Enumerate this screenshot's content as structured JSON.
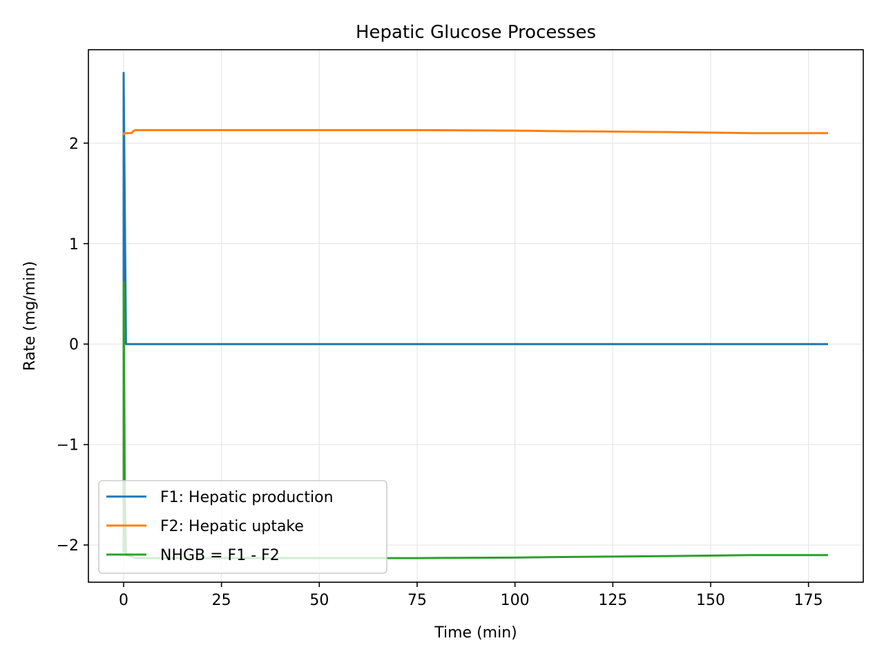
{
  "chart_data": {
    "type": "line",
    "title": "Hepatic Glucose Processes",
    "xlabel": "Time (min)",
    "ylabel": "Rate (mg/min)",
    "xlim": [
      -9,
      189
    ],
    "ylim": [
      -2.37,
      2.93
    ],
    "x_ticks": [
      0,
      25,
      50,
      75,
      100,
      125,
      150,
      175
    ],
    "x_tick_labels": [
      "0",
      "25",
      "50",
      "75",
      "100",
      "125",
      "150",
      "175"
    ],
    "y_ticks": [
      -2,
      -1,
      0,
      1,
      2
    ],
    "y_tick_labels": [
      "−2",
      "−1",
      "0",
      "1",
      "2"
    ],
    "grid": true,
    "legend_position": "lower-left",
    "series": [
      {
        "name": "F1: Hepatic production",
        "color": "#1f77b4",
        "x": [
          0,
          0,
          0.6,
          25,
          50,
          75,
          100,
          125,
          150,
          180
        ],
        "y": [
          0.0,
          2.7,
          0.0,
          0.0,
          0.0,
          0.0,
          0.0,
          0.0,
          0.0,
          0.0
        ]
      },
      {
        "name": "F2: Hepatic uptake",
        "color": "#ff7f0e",
        "x": [
          0,
          0.1,
          1.5,
          2.0,
          2.5,
          3.0,
          25,
          50,
          75,
          100,
          110,
          125,
          140,
          150,
          160,
          170,
          180
        ],
        "y": [
          2.08,
          2.1,
          2.1,
          2.1,
          2.12,
          2.13,
          2.13,
          2.13,
          2.13,
          2.125,
          2.12,
          2.115,
          2.11,
          2.105,
          2.1,
          2.1,
          2.1
        ]
      },
      {
        "name": "NHGB = F1 - F2",
        "color": "#2ca02c",
        "x": [
          0,
          0,
          0.05,
          0.1,
          0.3,
          0.6,
          1.5,
          2.5,
          3.0,
          25,
          50,
          75,
          100,
          110,
          125,
          140,
          150,
          160,
          170,
          180
        ],
        "y": [
          -2.08,
          0.62,
          0.6,
          0.0,
          -1.5,
          -2.1,
          -2.11,
          -2.12,
          -2.13,
          -2.13,
          -2.13,
          -2.13,
          -2.125,
          -2.12,
          -2.115,
          -2.11,
          -2.105,
          -2.1,
          -2.1,
          -2.1
        ]
      }
    ]
  }
}
